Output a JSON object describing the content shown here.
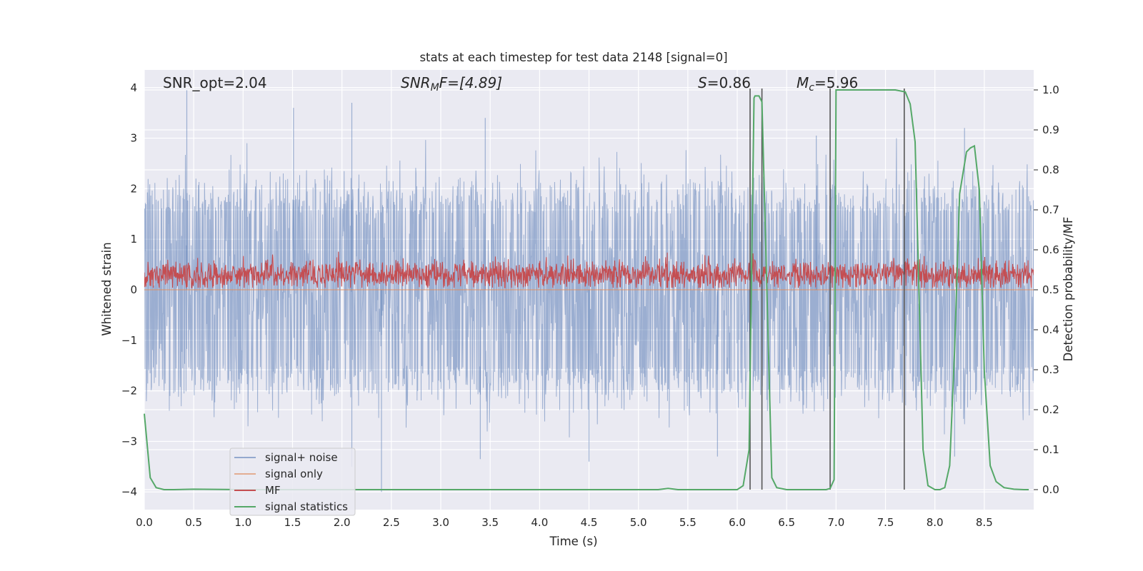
{
  "chart_data": {
    "type": "line",
    "title": "stats at each timestep for test data 2148 [signal=0]",
    "xlabel": "Time (s)",
    "ylabel": "Whitened strain",
    "ylabel_right": "Detection probability/MF",
    "xlim": [
      0,
      9.0
    ],
    "ylim": [
      -4.35,
      4.35
    ],
    "ylim_right": [
      -0.05,
      1.05
    ],
    "x_ticks": [
      0.0,
      0.5,
      1.0,
      1.5,
      2.0,
      2.5,
      3.0,
      3.5,
      4.0,
      4.5,
      5.0,
      5.5,
      6.0,
      6.5,
      7.0,
      7.5,
      8.0,
      8.5
    ],
    "x_tick_labels": [
      "0.0",
      "0.5",
      "1.0",
      "1.5",
      "2.0",
      "2.5",
      "3.0",
      "3.5",
      "4.0",
      "4.5",
      "5.0",
      "5.5",
      "6.0",
      "6.5",
      "7.0",
      "7.5",
      "8.0",
      "8.5"
    ],
    "y_ticks": [
      4,
      3,
      2,
      1,
      0,
      -1,
      -2,
      -3,
      -4
    ],
    "y_tick_labels": [
      "4",
      "3",
      "2",
      "1",
      "0",
      "−1",
      "−2",
      "−3",
      "−4"
    ],
    "y_ticks_right": [
      1.0,
      0.9,
      0.8,
      0.7,
      0.6,
      0.5,
      0.4,
      0.3,
      0.2,
      0.1,
      0.0
    ],
    "y_tick_labels_right": [
      "1.0",
      "0.9",
      "0.8",
      "0.7",
      "0.6",
      "0.5",
      "0.4",
      "0.3",
      "0.2",
      "0.1",
      "0.0"
    ],
    "grid": true,
    "legend_placement": "lower-left",
    "annotations": {
      "snr_opt": "SNR_opt=2.04",
      "snr_mf_main": "SNR",
      "snr_mf_sub": "M",
      "snr_mf_rest": "F=[4.89]",
      "s_main": "S",
      "s_rest": "=0.86",
      "mc_main": "M",
      "mc_sub": "c",
      "mc_rest": "=5.96"
    },
    "series": [
      {
        "name": "signal+ noise",
        "color": "#4c72b0",
        "opacity": 0.5,
        "axis": "left",
        "description": "whitened noise samples spanning roughly -2 to 2, with spikes to about +/-4",
        "envelope_core": 1.5,
        "peak_spikes": [
          {
            "x": 0.43,
            "y": 3.95
          },
          {
            "x": 1.51,
            "y": 3.6
          },
          {
            "x": 2.1,
            "y": 3.7
          },
          {
            "x": 3.45,
            "y": 3.4
          },
          {
            "x": 6.8,
            "y": 3.05
          },
          {
            "x": 8.3,
            "y": 3.2
          },
          {
            "x": 2.1,
            "y": -3.5
          },
          {
            "x": 2.4,
            "y": -4.0
          },
          {
            "x": 4.5,
            "y": -3.4
          },
          {
            "x": 3.4,
            "y": -3.35
          },
          {
            "x": 5.8,
            "y": -3.3
          },
          {
            "x": 8.2,
            "y": -3.3
          }
        ]
      },
      {
        "name": "signal only",
        "color": "#dd8452",
        "axis": "left",
        "x": [
          0.0,
          9.0
        ],
        "y": [
          0.0,
          0.0
        ]
      },
      {
        "name": "MF",
        "color": "#c44e52",
        "axis": "left",
        "description": "matched-filter output fluctuating between about 0.05 and 0.75",
        "baseline": 0.3,
        "spread": 0.3
      },
      {
        "name": "signal statistics",
        "color": "#55a868",
        "axis": "right",
        "x": [
          0.0,
          0.06,
          0.12,
          0.2,
          0.3,
          0.5,
          1.0,
          2.0,
          3.0,
          4.0,
          5.0,
          5.2,
          5.3,
          5.4,
          5.6,
          5.8,
          6.0,
          6.06,
          6.12,
          6.17,
          6.18,
          6.22,
          6.25,
          6.3,
          6.35,
          6.4,
          6.5,
          6.7,
          6.9,
          6.94,
          6.98,
          7.0,
          7.2,
          7.4,
          7.6,
          7.7,
          7.75,
          7.8,
          7.88,
          7.93,
          8.0,
          8.05,
          8.1,
          8.15,
          8.2,
          8.25,
          8.32,
          8.36,
          8.4,
          8.45,
          8.5,
          8.56,
          8.62,
          8.7,
          8.8,
          8.9,
          8.95
        ],
        "y": [
          0.19,
          0.03,
          0.005,
          0.0,
          0.0,
          0.001,
          0.0,
          0.0,
          0.0,
          0.0,
          0.0,
          0.0,
          0.003,
          0.0,
          0.0,
          0.0,
          0.0,
          0.01,
          0.1,
          0.98,
          0.985,
          0.985,
          0.97,
          0.5,
          0.03,
          0.005,
          0.0,
          0.0,
          0.0,
          0.003,
          0.025,
          1.0,
          1.0,
          1.0,
          1.0,
          0.995,
          0.965,
          0.87,
          0.1,
          0.01,
          0.0,
          0.0,
          0.005,
          0.06,
          0.35,
          0.74,
          0.845,
          0.855,
          0.86,
          0.75,
          0.3,
          0.06,
          0.02,
          0.005,
          0.001,
          0.0,
          0.0
        ]
      }
    ],
    "vertical_lines": [
      6.13,
      6.25,
      6.94,
      7.69
    ],
    "vertical_line_color": "#555555",
    "legend": [
      "signal+ noise",
      "signal only",
      "MF",
      "signal statistics"
    ],
    "colors": {
      "plot_background": "#eaeaf2",
      "grid": "#ffffff",
      "text": "#262626"
    }
  }
}
